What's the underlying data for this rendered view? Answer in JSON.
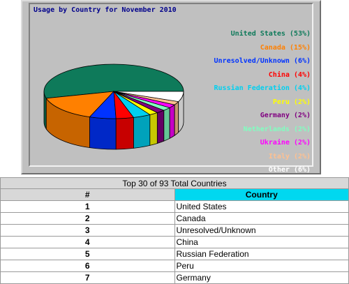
{
  "chart_data": {
    "type": "pie",
    "title": "Usage by Country for November 2010",
    "slices": [
      {
        "label": "United States (53%)",
        "value": 53,
        "color": "#0e7a5a",
        "text_color": "#0e7a5a"
      },
      {
        "label": "Canada (15%)",
        "value": 15,
        "color": "#ff8000",
        "text_color": "#ff8000"
      },
      {
        "label": "Unresolved/Unknown (6%)",
        "value": 6,
        "color": "#0033ff",
        "text_color": "#0033ff"
      },
      {
        "label": "China (4%)",
        "value": 4,
        "color": "#ff0000",
        "text_color": "#ff0000"
      },
      {
        "label": "Russian Federation (4%)",
        "value": 4,
        "color": "#00d0f0",
        "text_color": "#00d0f0"
      },
      {
        "label": "Peru (2%)",
        "value": 2,
        "color": "#ffff00",
        "text_color": "#ffff00"
      },
      {
        "label": "Germany (2%)",
        "value": 2,
        "color": "#800080",
        "text_color": "#800080"
      },
      {
        "label": "Netherlands (2%)",
        "value": 2,
        "color": "#80ffc0",
        "text_color": "#80ffc0"
      },
      {
        "label": "Ukraine (2%)",
        "value": 2,
        "color": "#ff00ff",
        "text_color": "#ff00ff"
      },
      {
        "label": "Italy (2%)",
        "value": 2,
        "color": "#ffc090",
        "text_color": "#ffc090"
      },
      {
        "label": "Other (6%)",
        "value": 6,
        "color": "#ffffff",
        "text_color": "#ffffff"
      }
    ],
    "legend": "right"
  },
  "table": {
    "caption": "Top 30 of 93 Total Countries",
    "headers": [
      "#",
      "Country"
    ],
    "rows": [
      [
        "1",
        "United States"
      ],
      [
        "2",
        "Canada"
      ],
      [
        "3",
        "Unresolved/Unknown"
      ],
      [
        "4",
        "China"
      ],
      [
        "5",
        "Russian Federation"
      ],
      [
        "6",
        "Peru"
      ],
      [
        "7",
        "Germany"
      ]
    ],
    "colors": {
      "caption_bg": "#d8d8d8",
      "country_header_bg": "#00d8f0"
    }
  }
}
